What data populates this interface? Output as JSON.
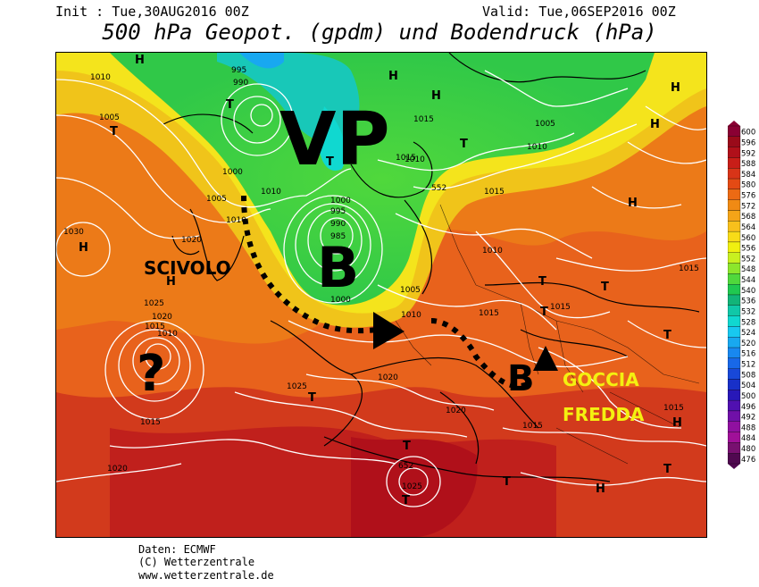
{
  "header": {
    "init": "Init : Tue,30AUG2016 00Z",
    "valid": "Valid: Tue,06SEP2016 00Z",
    "title": "500 hPa Geopot. (gpdm) und Bodendruck (hPa)"
  },
  "annotations": {
    "vp": "VP",
    "b_large": "B",
    "b_small": "B",
    "scivolo": "SCIVOLO",
    "question": "?",
    "goccia": "GOCCIA",
    "fredda": "FREDDA"
  },
  "pressure_centers": {
    "high": "H",
    "low": "T"
  },
  "isobar_labels": [
    "1010",
    "1005",
    "995",
    "990",
    "1015",
    "1005",
    "1010",
    "1000",
    "1005",
    "1010",
    "1015",
    "1010",
    "1000",
    "995",
    "990",
    "985",
    "1030",
    "1020",
    "1010",
    "1025",
    "1020",
    "1015",
    "1010",
    "1015",
    "1000",
    "1005",
    "1010",
    "1015",
    "1015",
    "1020",
    "1025",
    "1020",
    "1020",
    "1025",
    "1015",
    "1010",
    "1015",
    "1015",
    "1015",
    "652",
    "552"
  ],
  "legend": {
    "values": [
      "600",
      "596",
      "592",
      "588",
      "584",
      "580",
      "576",
      "572",
      "568",
      "564",
      "560",
      "556",
      "552",
      "548",
      "544",
      "540",
      "536",
      "532",
      "528",
      "524",
      "520",
      "516",
      "512",
      "508",
      "504",
      "500",
      "496",
      "492",
      "488",
      "484",
      "480",
      "476"
    ],
    "colors": [
      "#8a0033",
      "#9a0a1a",
      "#b0101a",
      "#c81e18",
      "#d83418",
      "#e44a14",
      "#ec6a14",
      "#f08a14",
      "#f4a418",
      "#f8c01c",
      "#f8dc18",
      "#f0f010",
      "#c8f020",
      "#8ce62c",
      "#50d83c",
      "#20c850",
      "#12b478",
      "#10c8a8",
      "#10d8d0",
      "#18c8f0",
      "#18a8f0",
      "#1888f0",
      "#1868e8",
      "#1848d8",
      "#1830c8",
      "#2818b8",
      "#5010b0",
      "#7010a8",
      "#9010a0",
      "#a01098",
      "#781070",
      "#500850"
    ]
  },
  "footer": {
    "line1": "Daten: ECMWF",
    "line2": "(C) Wetterzentrale",
    "line3": "www.wetterzentrale.de"
  }
}
